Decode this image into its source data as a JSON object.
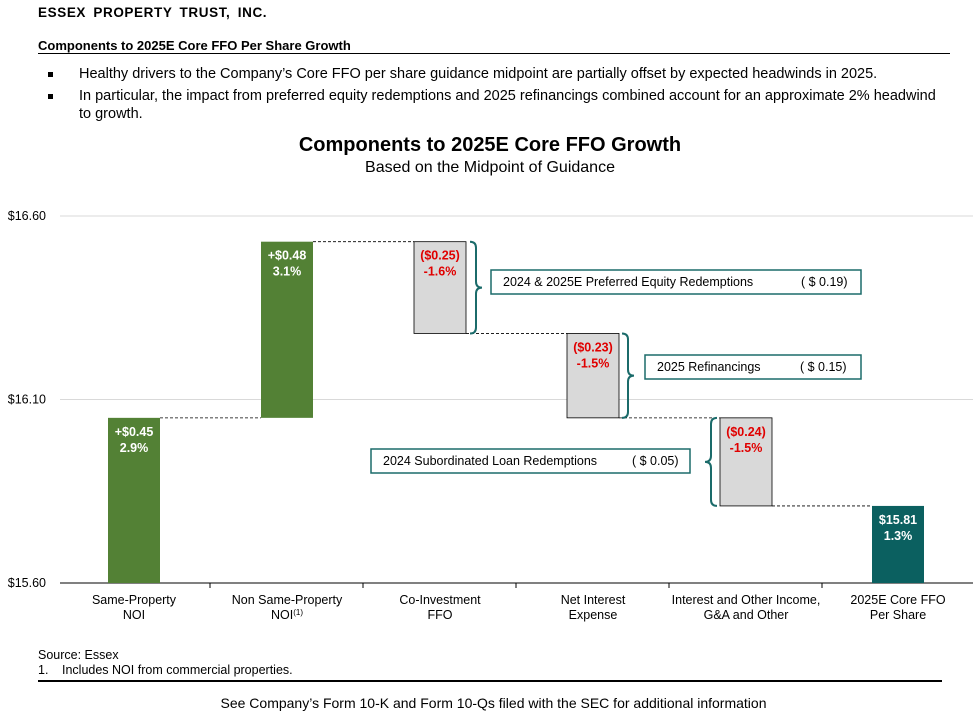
{
  "header": {
    "company": "ESSEX PROPERTY TRUST, INC.",
    "section_title": "Components to 2025E Core FFO Per Share Growth"
  },
  "bullets": [
    "Healthy drivers to the Company’s Core FFO per share guidance midpoint are partially offset by expected headwinds in 2025.",
    "In particular, the impact from preferred equity redemptions and 2025 refinancings combined account for an approximate 2% headwind to growth."
  ],
  "chart_data": {
    "type": "waterfall",
    "title": "Components to 2025E Core FFO Growth",
    "subtitle": "Based on the Midpoint of Guidance",
    "ylim": [
      15.6,
      16.6
    ],
    "yticks": [
      {
        "value": 15.6,
        "label": "$15.60"
      },
      {
        "value": 16.1,
        "label": "$16.10"
      },
      {
        "value": 16.6,
        "label": "$16.60"
      }
    ],
    "grid": true,
    "bars": [
      {
        "category": [
          "Same-Property",
          "NOI"
        ],
        "sup": "",
        "start": 15.6,
        "end": 16.05,
        "value_label": "+$0.45",
        "pct_label": "2.9%",
        "kind": "increase"
      },
      {
        "category": [
          "Non Same-Property",
          "NOI"
        ],
        "sup": "(1)",
        "start": 16.05,
        "end": 16.53,
        "value_label": "+$0.48",
        "pct_label": "3.1%",
        "kind": "increase"
      },
      {
        "category": [
          "Co-Investment",
          "FFO"
        ],
        "sup": "",
        "start": 16.53,
        "end": 16.28,
        "value_label": "($0.25)",
        "pct_label": "-1.6%",
        "kind": "decrease"
      },
      {
        "category": [
          "Net Interest",
          "Expense"
        ],
        "sup": "",
        "start": 16.28,
        "end": 16.05,
        "value_label": "($0.23)",
        "pct_label": "-1.5%",
        "kind": "decrease"
      },
      {
        "category": [
          "Interest and Other Income,",
          "G&A and Other"
        ],
        "sup": "",
        "start": 16.05,
        "end": 15.81,
        "value_label": "($0.24)",
        "pct_label": "-1.5%",
        "kind": "decrease"
      },
      {
        "category": [
          "2025E Core FFO",
          "Per Share"
        ],
        "sup": "",
        "start": 15.6,
        "end": 15.81,
        "value_label": "$15.81",
        "pct_label": "1.3%",
        "kind": "total"
      }
    ],
    "annotations": [
      {
        "bar": 2,
        "text": "2024 & 2025E Preferred Equity Redemptions",
        "amount": "( $ 0.19)",
        "side": "right"
      },
      {
        "bar": 3,
        "text": "2025 Refinancings",
        "amount": "( $ 0.15)",
        "side": "right"
      },
      {
        "bar": 4,
        "text": "2024 Subordinated Loan Redemptions",
        "amount": "( $ 0.05)",
        "side": "left"
      }
    ]
  },
  "colors": {
    "increase": "#538135",
    "decrease": "#d9d9d9",
    "total": "#0b6060",
    "negative_text": "#e00000",
    "positive_text": "#ffffff",
    "bracket": "#1b6b6a",
    "grid": "#d9d9d9"
  },
  "footnotes": {
    "source": "Source: Essex",
    "note_number": "1.",
    "note_text": "Includes NOI from commercial properties."
  },
  "footer": "See Company’s Form 10-K and Form 10-Qs filed with the SEC for additional information"
}
